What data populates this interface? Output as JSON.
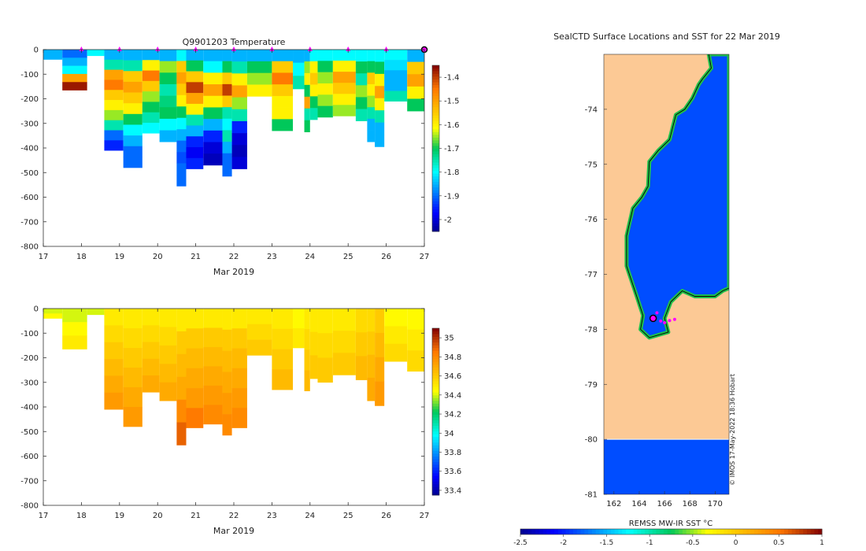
{
  "chart_data": [
    {
      "type": "heatmap",
      "title": "Q9901203  Temperature",
      "xlabel": "Mar 2019",
      "ylabel": "",
      "xlim": [
        17,
        27
      ],
      "ylim": [
        -800,
        0
      ],
      "x_ticks": [
        "17",
        "18",
        "19",
        "20",
        "21",
        "22",
        "23",
        "24",
        "25",
        "26",
        "27"
      ],
      "y_ticks": [
        "0",
        "-100",
        "-200",
        "-300",
        "-400",
        "-500",
        "-600",
        "-700",
        "-800"
      ],
      "colorbar": {
        "range": [
          -2.05,
          -1.35
        ],
        "ticks": [
          "-1.4",
          "-1.5",
          "-1.6",
          "-1.7",
          "-1.8",
          "-1.9",
          "-2"
        ],
        "tick_values": [
          -1.4,
          -1.5,
          -1.6,
          -1.7,
          -1.8,
          -1.9,
          -2.0
        ]
      },
      "surface_markers_x": [
        18,
        19,
        20,
        21,
        22,
        23,
        24,
        25,
        26
      ],
      "current_marker_x": 27,
      "profiles": [
        {
          "t0": 17.0,
          "t1": 17.5,
          "depth": 40,
          "values": [
            -1.85,
            -1.85
          ]
        },
        {
          "t0": 17.5,
          "t1": 18.15,
          "depth": 165,
          "values": [
            -1.9,
            -1.85,
            -1.8,
            -1.5,
            -1.37
          ]
        },
        {
          "t0": 18.15,
          "t1": 18.6,
          "depth": 25,
          "values": [
            -1.8
          ]
        },
        {
          "t0": 18.6,
          "t1": 19.1,
          "depth": 410,
          "values": [
            -1.85,
            -1.75,
            -1.5,
            -1.45,
            -1.55,
            -1.6,
            -1.65,
            -1.75,
            -1.9,
            -1.95
          ]
        },
        {
          "t0": 19.1,
          "t1": 19.6,
          "depth": 480,
          "values": [
            -1.85,
            -1.75,
            -1.55,
            -1.5,
            -1.55,
            -1.6,
            -1.7,
            -1.8,
            -1.85,
            -1.9,
            -1.9
          ]
        },
        {
          "t0": 19.6,
          "t1": 20.05,
          "depth": 340,
          "values": [
            -1.85,
            -1.6,
            -1.45,
            -1.55,
            -1.65,
            -1.7,
            -1.75,
            -1.8
          ]
        },
        {
          "t0": 20.05,
          "t1": 20.5,
          "depth": 375,
          "values": [
            -1.85,
            -1.65,
            -1.7,
            -1.75,
            -1.72,
            -1.7,
            -1.8,
            -1.85
          ]
        },
        {
          "t0": 20.5,
          "t1": 20.75,
          "depth": 555,
          "values": [
            -1.8,
            -1.55,
            -1.5,
            -1.55,
            -1.6,
            -1.7,
            -1.8,
            -1.85,
            -1.9,
            -1.92,
            -1.9,
            -1.9
          ]
        },
        {
          "t0": 20.75,
          "t1": 21.2,
          "depth": 485,
          "values": [
            -1.85,
            -1.7,
            -1.55,
            -1.4,
            -1.5,
            -1.6,
            -1.75,
            -1.85,
            -1.95,
            -1.98,
            -1.95
          ]
        },
        {
          "t0": 21.2,
          "t1": 21.7,
          "depth": 470,
          "values": [
            -1.85,
            -1.8,
            -1.6,
            -1.5,
            -1.6,
            -1.7,
            -1.85,
            -1.95,
            -2.0,
            -2.02
          ]
        },
        {
          "t0": 21.7,
          "t1": 21.95,
          "depth": 515,
          "values": [
            -1.85,
            -1.7,
            -1.55,
            -1.4,
            -1.55,
            -1.75,
            -1.8,
            -1.75,
            -1.85,
            -1.9,
            -1.9
          ]
        },
        {
          "t0": 21.95,
          "t1": 22.35,
          "depth": 485,
          "values": [
            -1.85,
            -1.75,
            -1.6,
            -1.5,
            -1.65,
            -1.75,
            -1.95,
            -2.0,
            -2.02,
            -2.0
          ]
        },
        {
          "t0": 22.35,
          "t1": 23.0,
          "depth": 190,
          "values": [
            -1.85,
            -1.7,
            -1.65,
            -1.6
          ]
        },
        {
          "t0": 23.0,
          "t1": 23.55,
          "depth": 330,
          "values": [
            -1.85,
            -1.55,
            -1.45,
            -1.55,
            -1.6,
            -1.6,
            -1.7
          ]
        },
        {
          "t0": 23.55,
          "t1": 23.85,
          "depth": 160,
          "values": [
            -1.85,
            -1.8,
            -1.75
          ]
        },
        {
          "t0": 23.85,
          "t1": 24.0,
          "depth": 335,
          "values": [
            -1.85,
            -1.65,
            -1.6,
            -1.7,
            -1.5,
            -1.75,
            -1.7
          ]
        },
        {
          "t0": 24.0,
          "t1": 24.2,
          "depth": 285,
          "values": [
            -1.8,
            -1.6,
            -1.55,
            -1.6,
            -1.7,
            -1.75
          ]
        },
        {
          "t0": 24.2,
          "t1": 24.6,
          "depth": 275,
          "values": [
            -1.8,
            -1.7,
            -1.65,
            -1.6,
            -1.65,
            -1.7
          ]
        },
        {
          "t0": 24.6,
          "t1": 25.2,
          "depth": 270,
          "values": [
            -1.8,
            -1.6,
            -1.5,
            -1.55,
            -1.6,
            -1.65
          ]
        },
        {
          "t0": 25.2,
          "t1": 25.5,
          "depth": 290,
          "values": [
            -1.8,
            -1.7,
            -1.75,
            -1.65,
            -1.7,
            -1.75
          ]
        },
        {
          "t0": 25.5,
          "t1": 25.7,
          "depth": 375,
          "values": [
            -1.8,
            -1.7,
            -1.55,
            -1.6,
            -1.65,
            -1.75,
            -1.85,
            -1.85
          ]
        },
        {
          "t0": 25.7,
          "t1": 25.95,
          "depth": 395,
          "values": [
            -1.8,
            -1.7,
            -1.6,
            -1.5,
            -1.6,
            -1.75,
            -1.85,
            -1.85
          ]
        },
        {
          "t0": 25.95,
          "t1": 26.55,
          "depth": 210,
          "values": [
            -1.8,
            -1.82,
            -1.85,
            -1.85,
            -1.75
          ]
        },
        {
          "t0": 26.55,
          "t1": 27.0,
          "depth": 250,
          "values": [
            -1.85,
            -1.55,
            -1.5,
            -1.6,
            -1.7
          ]
        }
      ]
    },
    {
      "type": "heatmap",
      "title": "",
      "xlabel": "Mar 2019",
      "ylabel": "",
      "xlim": [
        17,
        27
      ],
      "ylim": [
        -800,
        0
      ],
      "x_ticks": [
        "17",
        "18",
        "19",
        "20",
        "21",
        "22",
        "23",
        "24",
        "25",
        "26",
        "27"
      ],
      "y_ticks": [
        "0",
        "-100",
        "-200",
        "-300",
        "-400",
        "-500",
        "-600",
        "-700",
        "-800"
      ],
      "colorbar": {
        "range": [
          33.35,
          35.1
        ],
        "ticks": [
          "35",
          "34.8",
          "34.6",
          "34.4",
          "34.2",
          "34",
          "33.8",
          "33.6",
          "33.4"
        ],
        "tick_values": [
          35.0,
          34.8,
          34.6,
          34.4,
          34.2,
          34.0,
          33.8,
          33.6,
          33.4
        ]
      },
      "profiles": [
        {
          "t0": 17.0,
          "t1": 17.5,
          "depth": 40,
          "values": [
            34.4,
            34.45
          ]
        },
        {
          "t0": 17.5,
          "t1": 18.15,
          "depth": 165,
          "values": [
            34.4,
            34.45,
            34.5
          ]
        },
        {
          "t0": 18.15,
          "t1": 18.6,
          "depth": 25,
          "values": [
            34.4
          ]
        },
        {
          "t0": 18.6,
          "t1": 19.1,
          "depth": 410,
          "values": [
            34.5,
            34.55,
            34.6,
            34.65,
            34.7,
            34.75
          ]
        },
        {
          "t0": 19.1,
          "t1": 19.6,
          "depth": 480,
          "values": [
            34.5,
            34.55,
            34.6,
            34.65,
            34.7,
            34.75
          ]
        },
        {
          "t0": 19.6,
          "t1": 20.05,
          "depth": 340,
          "values": [
            34.5,
            34.55,
            34.6,
            34.65,
            34.7
          ]
        },
        {
          "t0": 20.05,
          "t1": 20.5,
          "depth": 375,
          "values": [
            34.5,
            34.55,
            34.6,
            34.65,
            34.7
          ]
        },
        {
          "t0": 20.5,
          "t1": 20.75,
          "depth": 555,
          "values": [
            34.5,
            34.6,
            34.65,
            34.7,
            34.8,
            34.9
          ]
        },
        {
          "t0": 20.75,
          "t1": 21.2,
          "depth": 485,
          "values": [
            34.5,
            34.6,
            34.65,
            34.7,
            34.75,
            34.85
          ]
        },
        {
          "t0": 21.2,
          "t1": 21.7,
          "depth": 470,
          "values": [
            34.5,
            34.6,
            34.65,
            34.7,
            34.75,
            34.8
          ]
        },
        {
          "t0": 21.7,
          "t1": 21.95,
          "depth": 515,
          "values": [
            34.5,
            34.6,
            34.65,
            34.7,
            34.75,
            34.8
          ]
        },
        {
          "t0": 21.95,
          "t1": 22.35,
          "depth": 485,
          "values": [
            34.5,
            34.6,
            34.65,
            34.7,
            34.75,
            34.8
          ]
        },
        {
          "t0": 22.35,
          "t1": 23.0,
          "depth": 190,
          "values": [
            34.5,
            34.55,
            34.6
          ]
        },
        {
          "t0": 23.0,
          "t1": 23.55,
          "depth": 330,
          "values": [
            34.5,
            34.55,
            34.6,
            34.65
          ]
        },
        {
          "t0": 23.55,
          "t1": 23.85,
          "depth": 160,
          "values": [
            34.45,
            34.5
          ]
        },
        {
          "t0": 23.85,
          "t1": 24.0,
          "depth": 335,
          "values": [
            34.5,
            34.55,
            34.6,
            34.65
          ]
        },
        {
          "t0": 24.0,
          "t1": 24.2,
          "depth": 285,
          "values": [
            34.5,
            34.55,
            34.6
          ]
        },
        {
          "t0": 24.2,
          "t1": 24.6,
          "depth": 300,
          "values": [
            34.5,
            34.55,
            34.6
          ]
        },
        {
          "t0": 24.6,
          "t1": 25.2,
          "depth": 270,
          "values": [
            34.5,
            34.55,
            34.6
          ]
        },
        {
          "t0": 25.2,
          "t1": 25.5,
          "depth": 290,
          "values": [
            34.55,
            34.6,
            34.65
          ]
        },
        {
          "t0": 25.5,
          "t1": 25.7,
          "depth": 375,
          "values": [
            34.55,
            34.6,
            34.65,
            34.7
          ]
        },
        {
          "t0": 25.7,
          "t1": 25.95,
          "depth": 395,
          "values": [
            34.6,
            34.65,
            34.7,
            34.75
          ]
        },
        {
          "t0": 25.95,
          "t1": 26.55,
          "depth": 215,
          "values": [
            34.45,
            34.5,
            34.55
          ]
        },
        {
          "t0": 26.55,
          "t1": 27.0,
          "depth": 255,
          "values": [
            34.45,
            34.5,
            34.55
          ]
        }
      ]
    },
    {
      "type": "heatmap",
      "title": "SealCTD Surface Locations and SST for 22 Mar 2019",
      "xlabel": "",
      "ylabel": "",
      "xlim": [
        161.2,
        171.1
      ],
      "ylim": [
        -81,
        -73
      ],
      "x_ticks": [
        "162",
        "164",
        "166",
        "168",
        "170"
      ],
      "x_tick_values": [
        162,
        164,
        166,
        168,
        170
      ],
      "y_ticks": [
        "-74",
        "-75",
        "-76",
        "-77",
        "-78",
        "-79",
        "-80",
        "-81"
      ],
      "y_tick_values": [
        -74,
        -75,
        -76,
        -77,
        -78,
        -79,
        -80,
        -81
      ],
      "colorbar_label": "REMSS MW-IR SST °C",
      "colorbar": {
        "range": [
          -2.5,
          1
        ],
        "ticks": [
          "-2.5",
          "-2",
          "-1.5",
          "-1",
          "-0.5",
          "0",
          "0.5",
          "1"
        ],
        "tick_values": [
          -2.5,
          -2,
          -1.5,
          -1,
          -0.5,
          0,
          0.5,
          1
        ]
      },
      "credit": "© IMOS 17-May-2022 18:36 Hobart",
      "ocean_sst": -1.85,
      "coastline": [
        [
          169.5,
          -73.0
        ],
        [
          169.7,
          -73.25
        ],
        [
          169.0,
          -73.45
        ],
        [
          168.7,
          -73.55
        ],
        [
          168.2,
          -73.8
        ],
        [
          167.6,
          -74.0
        ],
        [
          166.9,
          -74.1
        ],
        [
          166.4,
          -74.55
        ],
        [
          165.5,
          -74.75
        ],
        [
          164.8,
          -74.95
        ],
        [
          164.7,
          -75.4
        ],
        [
          164.2,
          -75.6
        ],
        [
          163.5,
          -75.8
        ],
        [
          163.0,
          -76.3
        ],
        [
          163.0,
          -76.85
        ],
        [
          163.8,
          -77.4
        ],
        [
          164.3,
          -77.75
        ],
        [
          164.1,
          -78.0
        ],
        [
          164.8,
          -78.15
        ],
        [
          166.3,
          -78.05
        ],
        [
          166.0,
          -77.8
        ],
        [
          166.5,
          -77.5
        ],
        [
          167.4,
          -77.3
        ],
        [
          168.4,
          -77.4
        ],
        [
          170.0,
          -77.4
        ],
        [
          170.6,
          -77.3
        ],
        [
          171.1,
          -77.25
        ]
      ],
      "ice_edge_lat": -80,
      "seal_positions": [
        {
          "lon": 165.1,
          "lat": -77.8,
          "current": true
        },
        {
          "lon": 165.4,
          "lat": -77.7
        },
        {
          "lon": 165.7,
          "lat": -77.85
        },
        {
          "lon": 166.0,
          "lat": -77.88
        },
        {
          "lon": 166.4,
          "lat": -77.84
        },
        {
          "lon": 166.8,
          "lat": -77.82
        }
      ]
    }
  ]
}
